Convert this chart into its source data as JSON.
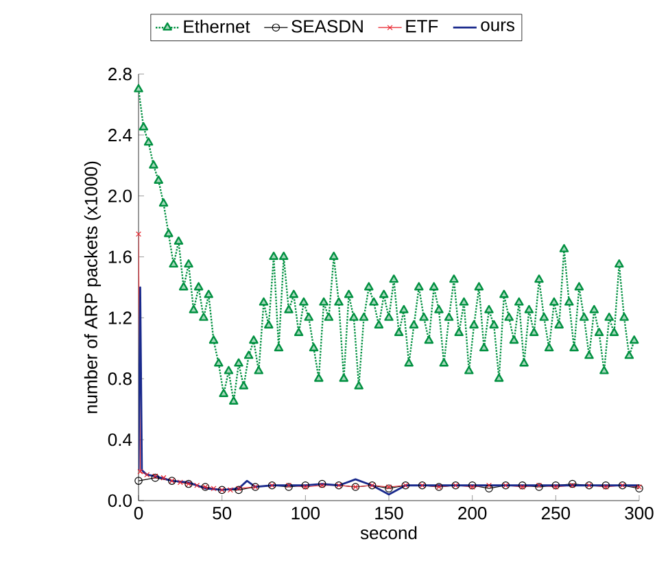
{
  "chart_data": {
    "type": "line",
    "xlabel": "second",
    "ylabel": "number of ARP packets (x1000)",
    "xlim": [
      0,
      300
    ],
    "ylim": [
      0,
      2.8
    ],
    "xticks": [
      0,
      50,
      100,
      150,
      200,
      250,
      300
    ],
    "yticks": [
      {
        "value": 0,
        "label": "0.0"
      },
      {
        "value": 0.4,
        "label": "0.4"
      },
      {
        "value": 0.8,
        "label": "0.8"
      },
      {
        "value": 1.2,
        "label": "1.2"
      },
      {
        "value": 1.6,
        "label": "1.6"
      },
      {
        "value": 2.0,
        "label": "2.0"
      },
      {
        "value": 2.4,
        "label": "2.4"
      },
      {
        "value": 2.8,
        "label": "2.8"
      }
    ],
    "legend": "top",
    "grid": false,
    "series": [
      {
        "name": "Ethernet",
        "color": "#009040",
        "marker": "triangle",
        "line_style": "dotted",
        "x": [
          0,
          3,
          6,
          9,
          12,
          15,
          18,
          21,
          24,
          27,
          30,
          33,
          36,
          39,
          42,
          45,
          48,
          51,
          54,
          57,
          60,
          63,
          66,
          69,
          72,
          75,
          78,
          81,
          84,
          87,
          90,
          93,
          96,
          99,
          102,
          105,
          108,
          111,
          114,
          117,
          120,
          123,
          126,
          129,
          132,
          135,
          138,
          141,
          144,
          147,
          150,
          153,
          156,
          159,
          162,
          165,
          168,
          171,
          174,
          177,
          180,
          183,
          186,
          189,
          192,
          195,
          198,
          201,
          204,
          207,
          210,
          213,
          216,
          219,
          222,
          225,
          228,
          231,
          234,
          237,
          240,
          243,
          246,
          249,
          252,
          255,
          258,
          261,
          264,
          267,
          270,
          273,
          276,
          279,
          282,
          285,
          288,
          291,
          294,
          297
        ],
        "values": [
          2.7,
          2.45,
          2.35,
          2.2,
          2.1,
          1.95,
          1.75,
          1.55,
          1.7,
          1.4,
          1.55,
          1.25,
          1.4,
          1.2,
          1.35,
          1.05,
          0.9,
          0.7,
          0.85,
          0.65,
          0.9,
          0.75,
          0.95,
          1.05,
          0.85,
          1.3,
          1.15,
          1.6,
          1.0,
          1.6,
          1.25,
          1.35,
          1.1,
          1.3,
          1.2,
          1.0,
          0.8,
          1.3,
          1.2,
          1.6,
          1.3,
          0.8,
          1.35,
          1.2,
          0.75,
          1.2,
          1.4,
          1.3,
          1.15,
          1.35,
          1.2,
          1.45,
          1.1,
          1.25,
          0.9,
          1.15,
          1.4,
          1.2,
          1.05,
          1.4,
          1.25,
          0.9,
          1.2,
          1.45,
          1.1,
          1.3,
          0.85,
          1.15,
          1.4,
          1.0,
          1.25,
          1.15,
          0.8,
          1.35,
          1.2,
          1.05,
          1.3,
          0.9,
          1.25,
          1.1,
          1.45,
          1.2,
          1.0,
          1.3,
          1.15,
          1.65,
          1.3,
          1.0,
          1.4,
          1.2,
          0.95,
          1.25,
          1.1,
          0.85,
          1.2,
          1.1,
          1.55,
          1.2,
          0.95,
          1.05
        ]
      },
      {
        "name": "SEASDN",
        "color": "#000000",
        "marker": "circle",
        "line_style": "solid",
        "x": [
          0,
          10,
          20,
          30,
          40,
          50,
          60,
          70,
          80,
          90,
          100,
          110,
          120,
          130,
          140,
          150,
          160,
          170,
          180,
          190,
          200,
          210,
          220,
          230,
          240,
          250,
          260,
          270,
          280,
          290,
          300
        ],
        "values": [
          0.13,
          0.15,
          0.13,
          0.11,
          0.09,
          0.07,
          0.07,
          0.09,
          0.1,
          0.09,
          0.1,
          0.11,
          0.1,
          0.09,
          0.1,
          0.08,
          0.1,
          0.1,
          0.09,
          0.1,
          0.1,
          0.08,
          0.1,
          0.1,
          0.09,
          0.1,
          0.11,
          0.1,
          0.1,
          0.1,
          0.08
        ]
      },
      {
        "name": "ETF",
        "color": "#e8202a",
        "marker": "cross",
        "line_style": "solid",
        "x": [
          0,
          1,
          5,
          10,
          15,
          20,
          25,
          30,
          35,
          40,
          45,
          50,
          55,
          60,
          70,
          80,
          90,
          100,
          110,
          120,
          130,
          140,
          150,
          160,
          170,
          180,
          190,
          200,
          210,
          220,
          230,
          240,
          250,
          260,
          270,
          280,
          290,
          300
        ],
        "values": [
          1.75,
          0.19,
          0.17,
          0.16,
          0.15,
          0.13,
          0.12,
          0.11,
          0.1,
          0.09,
          0.08,
          0.07,
          0.07,
          0.08,
          0.09,
          0.1,
          0.1,
          0.09,
          0.1,
          0.1,
          0.09,
          0.1,
          0.09,
          0.1,
          0.1,
          0.09,
          0.1,
          0.09,
          0.1,
          0.1,
          0.09,
          0.1,
          0.09,
          0.1,
          0.1,
          0.09,
          0.1,
          0.09
        ]
      },
      {
        "name": "ours",
        "color": "#1a2a8c",
        "marker": "none",
        "line_style": "solid",
        "x": [
          0,
          1,
          2,
          5,
          10,
          20,
          30,
          40,
          50,
          60,
          65,
          70,
          80,
          90,
          100,
          110,
          120,
          130,
          140,
          150,
          160,
          170,
          180,
          190,
          200,
          210,
          220,
          230,
          240,
          250,
          260,
          270,
          280,
          290,
          300
        ],
        "values": [
          0.2,
          1.4,
          0.2,
          0.17,
          0.16,
          0.13,
          0.12,
          0.08,
          0.07,
          0.08,
          0.13,
          0.09,
          0.1,
          0.1,
          0.1,
          0.11,
          0.1,
          0.14,
          0.1,
          0.04,
          0.1,
          0.1,
          0.1,
          0.1,
          0.1,
          0.1,
          0.1,
          0.1,
          0.1,
          0.1,
          0.1,
          0.1,
          0.1,
          0.1,
          0.1
        ]
      }
    ]
  }
}
